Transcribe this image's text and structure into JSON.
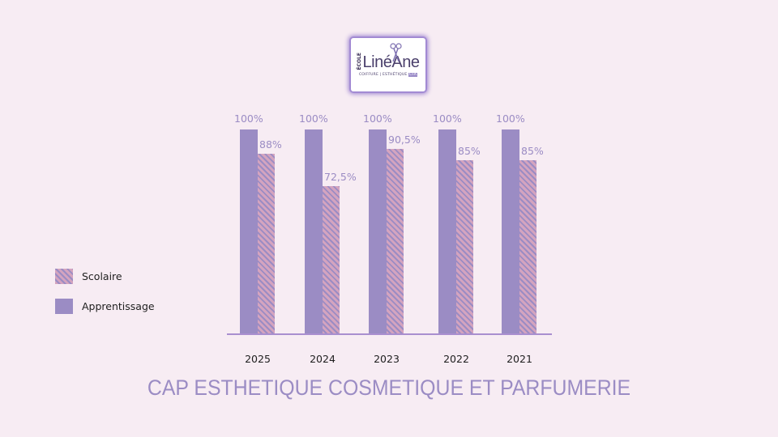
{
  "logo": {
    "ecole": "ÉCOLE",
    "name": "LinéAne",
    "subtitle": "COIFFURE | ESTHÉTIQUE",
    "badge": "CFA"
  },
  "chart_data": {
    "type": "bar",
    "title": "CAP ESTHETIQUE COSMETIQUE ET PARFUMERIE",
    "categories": [
      "2025",
      "2024",
      "2023",
      "2022",
      "2021"
    ],
    "series": [
      {
        "name": "Apprentissage",
        "values": [
          100,
          100,
          100,
          100,
          100
        ],
        "labels": [
          "100%",
          "100%",
          "100%",
          "100%",
          "100%"
        ],
        "color": "#9b8cc4",
        "pattern": "solid"
      },
      {
        "name": "Scolaire",
        "values": [
          88,
          72.5,
          90.5,
          85,
          85
        ],
        "labels": [
          "88%",
          "72,5%",
          "90,5%",
          "85%",
          "85%"
        ],
        "color": "#d4a4bf",
        "pattern": "diagonal-stripes"
      }
    ],
    "xlabel": "",
    "ylabel": "",
    "ylim": [
      0,
      100
    ],
    "grid": false,
    "legend_position": "left"
  },
  "legend": [
    {
      "label": "Scolaire",
      "swatch": "striped"
    },
    {
      "label": "Apprentissage",
      "swatch": "solid"
    }
  ],
  "colors": {
    "background": "#f7ecf3",
    "apprentissage": "#9b8cc4",
    "scolaire_stripe": "#d4a4bf",
    "axis": "#a98fcf",
    "title": "#9b8cc4"
  }
}
